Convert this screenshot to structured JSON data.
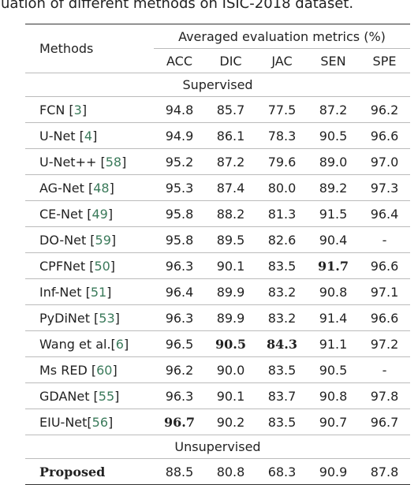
{
  "caption": "uation of different methods on ISIC-2018 dataset.",
  "table": {
    "methods_header": "Methods",
    "group_header": "Averaged evaluation metrics (%)",
    "columns": [
      "ACC",
      "DIC",
      "JAC",
      "SEN",
      "SPE"
    ],
    "sections": [
      {
        "title": "Supervised",
        "rows": [
          {
            "method": "FCN [3]",
            "values": [
              "94.8",
              "85.7",
              "77.5",
              "87.2",
              "96.2"
            ]
          },
          {
            "method": "U-Net [4]",
            "values": [
              "94.9",
              "86.1",
              "78.3",
              "90.5",
              "96.6"
            ]
          },
          {
            "method": "U-Net++ [58]",
            "values": [
              "95.2",
              "87.2",
              "79.6",
              "89.0",
              "97.0"
            ]
          },
          {
            "method": "AG-Net [48]",
            "values": [
              "95.3",
              "87.4",
              "80.0",
              "89.2",
              "97.3"
            ]
          },
          {
            "method": "CE-Net [49]",
            "values": [
              "95.8",
              "88.2",
              "81.3",
              "91.5",
              "96.4"
            ]
          },
          {
            "method": "DO-Net [59]",
            "values": [
              "95.8",
              "89.5",
              "82.6",
              "90.4",
              "-"
            ]
          },
          {
            "method": "CPFNet [50]",
            "values": [
              "96.3",
              "90.1",
              "83.5",
              "91.7",
              "96.6"
            ],
            "bold": [
              3
            ]
          },
          {
            "method": "Inf-Net [51]",
            "values": [
              "96.4",
              "89.9",
              "83.2",
              "90.8",
              "97.1"
            ]
          },
          {
            "method": "PyDiNet [53]",
            "values": [
              "96.3",
              "89.9",
              "83.2",
              "91.4",
              "96.6"
            ]
          },
          {
            "method": "Wang et al.[6]",
            "values": [
              "96.5",
              "90.5",
              "84.3",
              "91.1",
              "97.2"
            ],
            "bold": [
              1,
              2
            ]
          },
          {
            "method": "Ms RED [60]",
            "values": [
              "96.2",
              "90.0",
              "83.5",
              "90.5",
              "-"
            ]
          },
          {
            "method": "GDANet [55]",
            "values": [
              "96.3",
              "90.1",
              "83.7",
              "90.8",
              "97.8"
            ]
          },
          {
            "method": "EIU-Net[56]",
            "values": [
              "96.7",
              "90.2",
              "83.5",
              "90.7",
              "96.7"
            ],
            "bold": [
              0
            ]
          }
        ]
      },
      {
        "title": "Unsupervised",
        "rows": [
          {
            "method": "Proposed",
            "method_bold": true,
            "values": [
              "88.5",
              "80.8",
              "68.3",
              "90.9",
              "87.8"
            ]
          }
        ]
      }
    ]
  }
}
